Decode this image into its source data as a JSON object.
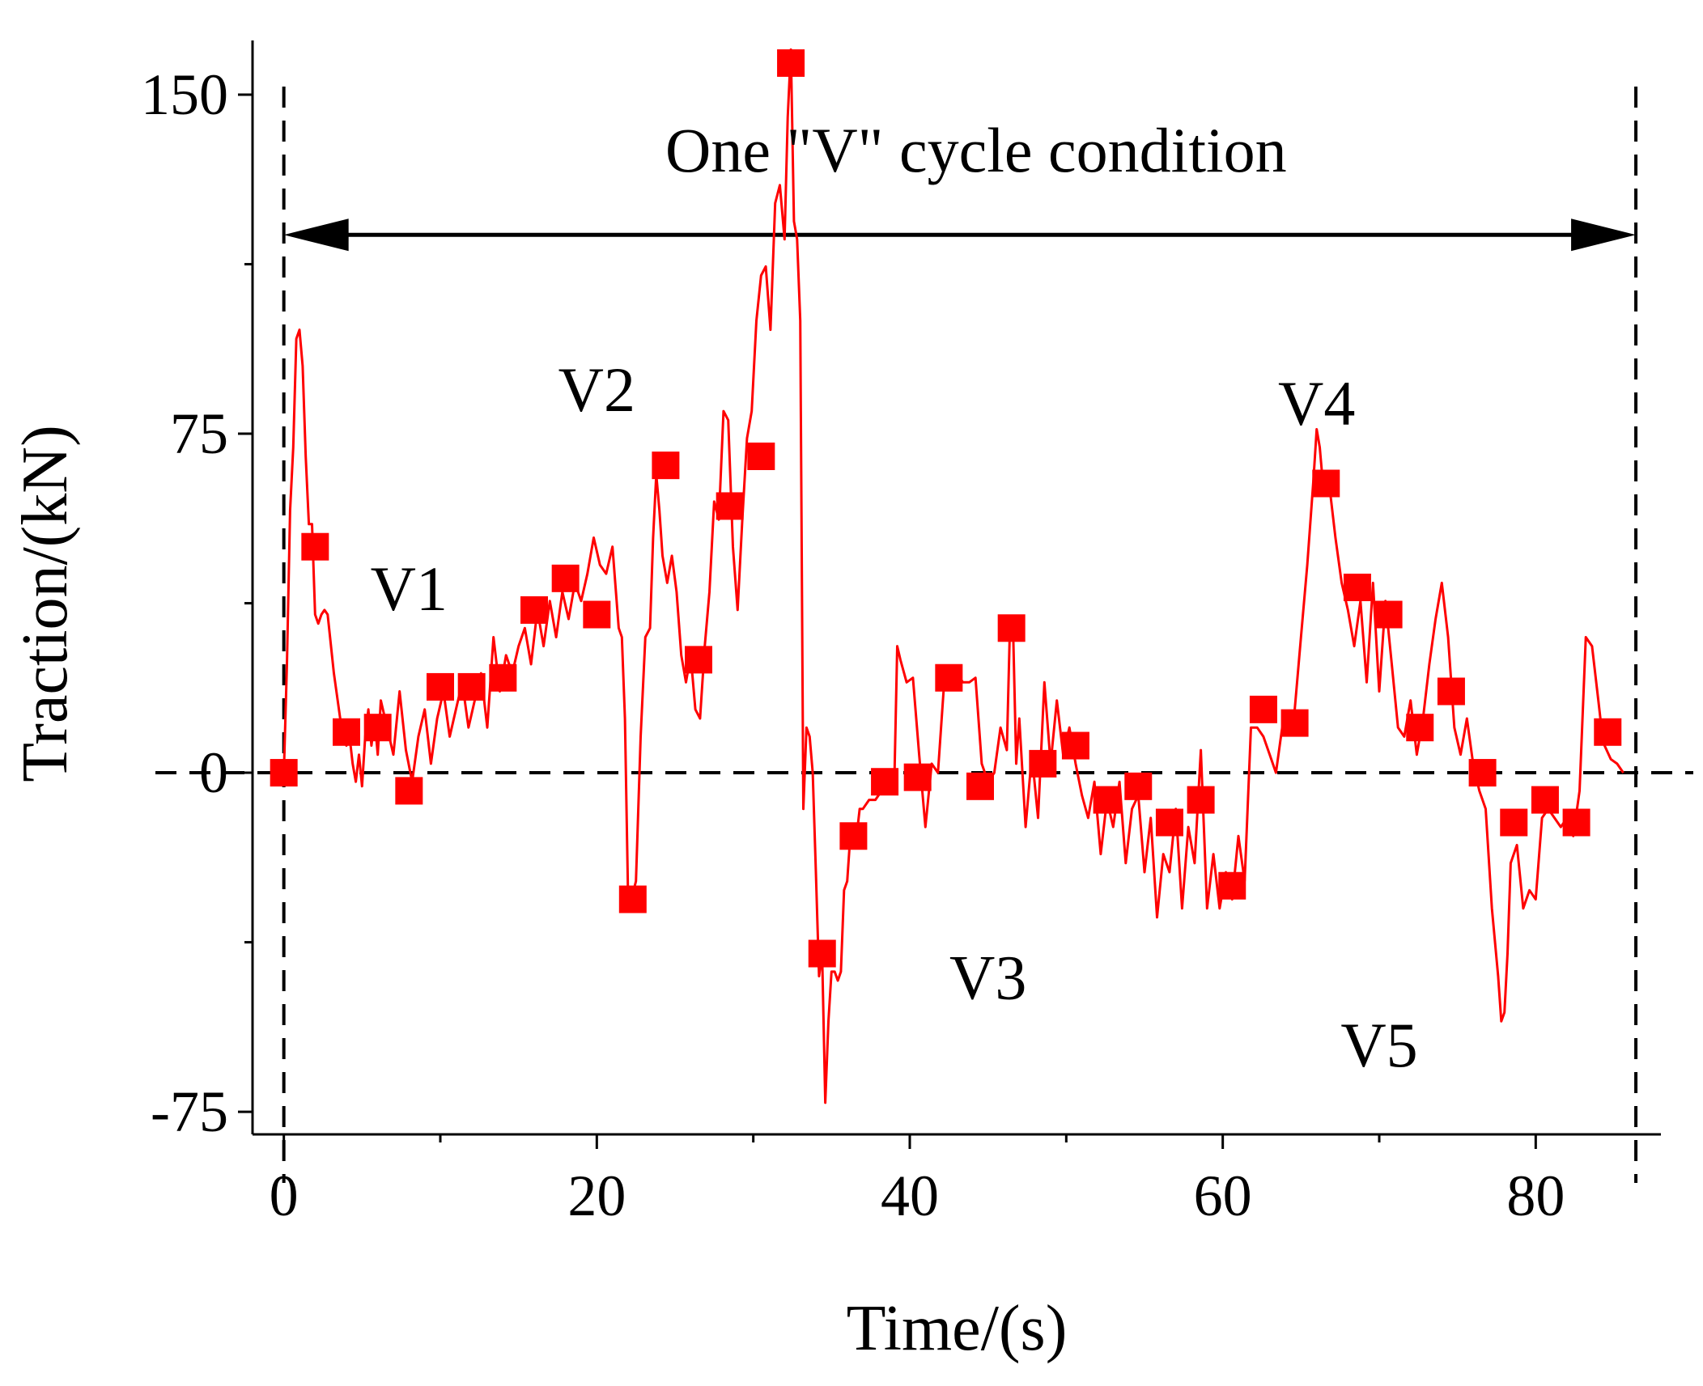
{
  "chart_data": {
    "type": "line",
    "title": "",
    "xlabel": "Time/(s)",
    "ylabel": "Traction/(kN)",
    "xlim": [
      -2,
      88
    ],
    "ylim": [
      -80,
      162
    ],
    "x_ticks": [
      0,
      20,
      40,
      60,
      80
    ],
    "x_tick_labels": [
      "0",
      "20",
      "40",
      "60",
      "80"
    ],
    "y_ticks": [
      -75,
      0,
      75,
      150
    ],
    "y_tick_labels": [
      "-75",
      "0",
      "75",
      "150"
    ],
    "x_minor_ticks": [
      10,
      30,
      50,
      70
    ],
    "y_minor_ticks": [
      -37.5,
      37.5,
      112.5
    ],
    "grid": false,
    "legend": "none",
    "reference_lines": {
      "zero_line_y": 0,
      "cycle_start_x": 0,
      "cycle_end_x": 86.4
    },
    "cycle_arrow": {
      "label": "One \"V\" cycle condition",
      "x_start": 0,
      "x_end": 86.4,
      "y": 119
    },
    "annotations": [
      {
        "text": "V1",
        "x": 8,
        "y": 36
      },
      {
        "text": "V2",
        "x": 20,
        "y": 80
      },
      {
        "text": "V3",
        "x": 45,
        "y": -50
      },
      {
        "text": "V4",
        "x": 66,
        "y": 77
      },
      {
        "text": "V5",
        "x": 70,
        "y": -65
      }
    ],
    "series": [
      {
        "name": "Traction",
        "color": "#ff0000",
        "line_x": [
          0,
          0.2,
          0.4,
          0.6,
          0.8,
          1,
          1.2,
          1.4,
          1.6,
          1.8,
          2,
          2.2,
          2.4,
          2.6,
          2.8,
          3.2,
          3.6,
          4,
          4.2,
          4.4,
          4.6,
          4.8,
          5,
          5.2,
          5.4,
          5.6,
          5.8,
          6,
          6.2,
          6.6,
          7,
          7.4,
          7.8,
          8.2,
          8.6,
          9,
          9.4,
          9.8,
          10.2,
          10.6,
          11,
          11.4,
          11.8,
          12.2,
          12.6,
          13,
          13.4,
          13.8,
          14.2,
          14.6,
          15,
          15.4,
          15.8,
          16.2,
          16.6,
          17,
          17.4,
          17.8,
          18.2,
          18.6,
          19,
          19.4,
          19.8,
          20.2,
          20.6,
          21,
          21.4,
          21.6,
          21.8,
          22,
          22.2,
          22.5,
          22.8,
          23.1,
          23.4,
          23.6,
          23.8,
          24,
          24.2,
          24.5,
          24.8,
          25.1,
          25.4,
          25.7,
          26,
          26.3,
          26.6,
          26.9,
          27.2,
          27.5,
          27.8,
          28.1,
          28.4,
          28.7,
          29,
          29.3,
          29.6,
          29.9,
          30.2,
          30.5,
          30.8,
          31.1,
          31.4,
          31.7,
          32,
          32.2,
          32.4,
          32.6,
          32.8,
          33,
          33.2,
          33.4,
          33.6,
          33.8,
          34,
          34.2,
          34.4,
          34.6,
          34.8,
          35,
          35.2,
          35.4,
          35.6,
          35.8,
          36,
          36.2,
          36.4,
          36.6,
          36.8,
          37,
          37.4,
          37.8,
          38.2,
          38.6,
          39,
          39.2,
          39.4,
          39.8,
          40.2,
          40.6,
          41,
          41.4,
          41.8,
          42.2,
          42.6,
          43,
          43.4,
          43.8,
          44.2,
          44.6,
          45,
          45.4,
          45.8,
          46.2,
          46.4,
          46.6,
          46.8,
          47,
          47.4,
          47.8,
          48.2,
          48.6,
          49,
          49.4,
          49.8,
          50.2,
          50.6,
          51,
          51.4,
          51.8,
          52.2,
          52.6,
          53,
          53.4,
          53.8,
          54.2,
          54.6,
          55,
          55.4,
          55.8,
          56.2,
          56.6,
          57,
          57.4,
          57.8,
          58.2,
          58.6,
          59,
          59.4,
          59.8,
          60.2,
          60.6,
          61,
          61.4,
          61.8,
          62.2,
          62.6,
          63,
          63.4,
          63.8,
          64.2,
          64.6,
          65,
          65.4,
          65.8,
          66,
          66.2,
          66.4,
          66.8,
          67.2,
          67.6,
          68,
          68.4,
          68.8,
          69.2,
          69.6,
          70,
          70.4,
          70.8,
          71.2,
          71.6,
          72,
          72.4,
          72.8,
          73.2,
          73.6,
          74,
          74.4,
          74.8,
          75.2,
          75.6,
          76,
          76.4,
          76.8,
          77.2,
          77.6,
          77.8,
          78,
          78.2,
          78.4,
          78.8,
          79.2,
          79.6,
          80,
          80.4,
          80.8,
          81.2,
          81.6,
          82,
          82.4,
          82.8,
          83.2,
          83.6,
          84,
          84.2,
          84.4,
          84.8,
          85.2,
          85.6,
          86,
          86.4
        ],
        "line_y": [
          0,
          24,
          58,
          72,
          96,
          98,
          90,
          70,
          55,
          55,
          35,
          33,
          35,
          36,
          35,
          22,
          12,
          6,
          8,
          2,
          -2,
          4,
          -3,
          8,
          14,
          6,
          12,
          4,
          16,
          10,
          4,
          18,
          5,
          -2,
          8,
          14,
          2,
          12,
          18,
          8,
          14,
          20,
          10,
          16,
          22,
          10,
          30,
          18,
          26,
          22,
          28,
          32,
          24,
          36,
          28,
          38,
          30,
          40,
          34,
          42,
          38,
          44,
          52,
          46,
          44,
          50,
          32,
          30,
          12,
          -28,
          -28,
          -24,
          8,
          30,
          32,
          52,
          66,
          58,
          48,
          42,
          48,
          40,
          26,
          20,
          26,
          14,
          12,
          28,
          40,
          60,
          56,
          80,
          78,
          50,
          36,
          56,
          74,
          80,
          100,
          110,
          112,
          98,
          126,
          130,
          118,
          145,
          160,
          122,
          118,
          100,
          -8,
          10,
          8,
          0,
          -22,
          -45,
          -40,
          -73,
          -55,
          -44,
          -44,
          -46,
          -44,
          -26,
          -24,
          -14,
          -12,
          -14,
          -8,
          -8,
          -6,
          -6,
          -4,
          -2,
          -4,
          28,
          25,
          20,
          21,
          4,
          -12,
          2,
          0,
          20,
          20,
          22,
          20,
          20,
          21,
          2,
          -2,
          0,
          10,
          5,
          32,
          32,
          2,
          12,
          -12,
          4,
          -10,
          20,
          2,
          16,
          4,
          10,
          2,
          -5,
          -10,
          -2,
          -18,
          -6,
          -12,
          -2,
          -20,
          -8,
          -5,
          -22,
          -10,
          -32,
          -18,
          -22,
          -8,
          -30,
          -12,
          -20,
          5,
          -30,
          -18,
          -30,
          -22,
          -28,
          -14,
          -24,
          10,
          10,
          8,
          4,
          0,
          10,
          12,
          14,
          30,
          46,
          65,
          76,
          72,
          64,
          64,
          52,
          42,
          36,
          28,
          38,
          20,
          42,
          18,
          38,
          24,
          10,
          8,
          16,
          4,
          12,
          24,
          34,
          42,
          30,
          10,
          4,
          12,
          2,
          -4,
          -8,
          -30,
          -45,
          -55,
          -53,
          -40,
          -20,
          -16,
          -30,
          -26,
          -28,
          -10,
          -8,
          -10,
          -12,
          -10,
          -14,
          -4,
          30,
          28,
          16,
          10,
          6,
          3,
          2,
          0
        ],
        "marker_x": [
          0,
          2,
          4,
          6,
          8,
          10,
          12,
          14,
          16,
          18,
          20,
          22.3,
          24.4,
          26.5,
          28.5,
          30.5,
          32.4,
          34.4,
          36.4,
          38.4,
          40.5,
          42.5,
          44.5,
          46.5,
          48.5,
          50.6,
          52.6,
          54.6,
          56.6,
          58.6,
          60.6,
          62.6,
          64.6,
          66.6,
          68.6,
          70.6,
          72.6,
          74.6,
          76.6,
          78.6,
          80.6,
          82.6,
          84.6
        ],
        "marker_y": [
          0,
          50,
          9,
          10,
          -4,
          19,
          19,
          21,
          36,
          43,
          35,
          -28,
          68,
          25,
          59,
          70,
          157,
          -40,
          -14,
          -2,
          -1,
          21,
          -3,
          32,
          2,
          6,
          -6,
          -3,
          -11,
          -6,
          -25,
          14,
          11,
          64,
          41,
          35,
          10,
          18,
          0,
          -11,
          -6,
          -11,
          9
        ]
      }
    ]
  }
}
